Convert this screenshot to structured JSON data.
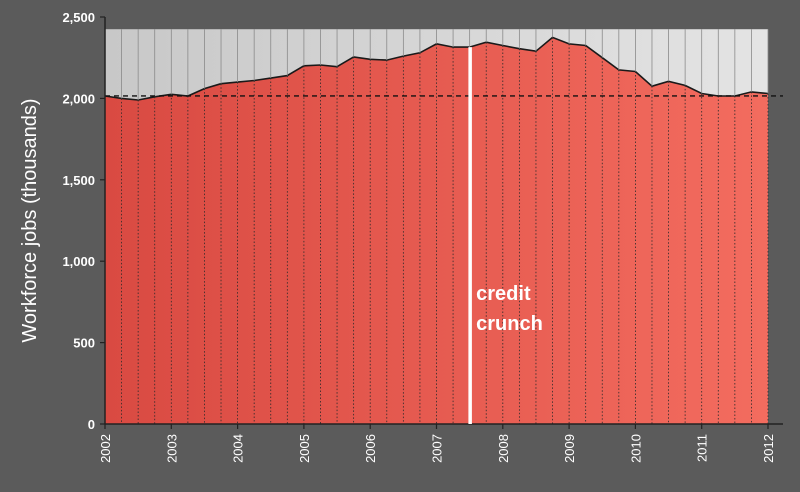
{
  "chart_data": {
    "type": "area",
    "title": "",
    "xlabel": "",
    "ylabel": "Workforce jobs (thousands)",
    "ylim": [
      0,
      2500
    ],
    "y_ticks": [
      0,
      500,
      1000,
      1500,
      2000,
      2500
    ],
    "y_tick_labels": [
      "0",
      "500",
      "1,000",
      "1,500",
      "2,000",
      "2,500"
    ],
    "x_ticks": [
      "2002",
      "2003",
      "2004",
      "2005",
      "2006",
      "2007",
      "2008",
      "2009",
      "2010",
      "2011",
      "2012"
    ],
    "quarters": [
      "2002 Q2",
      "2002 Q3",
      "2002 Q4",
      "2003 Q1",
      "2003 Q2",
      "2003 Q3",
      "2003 Q4",
      "2004 Q1",
      "2004 Q2",
      "2004 Q3",
      "2004 Q4",
      "2005 Q1",
      "2005 Q2",
      "2005 Q3",
      "2005 Q4",
      "2006 Q1",
      "2006 Q2",
      "2006 Q3",
      "2006 Q4",
      "2007 Q1",
      "2007 Q2",
      "2007 Q3",
      "2007 Q4",
      "2008 Q1",
      "2008 Q2",
      "2008 Q3",
      "2008 Q4",
      "2009 Q1",
      "2009 Q2",
      "2009 Q3",
      "2009 Q4",
      "2010 Q1",
      "2010 Q2",
      "2010 Q3",
      "2010 Q4",
      "2011 Q1",
      "2011 Q2",
      "2011 Q3",
      "2011 Q4",
      "2012 Q1",
      "2012 Q2"
    ],
    "values": [
      2015,
      2000,
      1990,
      2010,
      2025,
      2015,
      2060,
      2090,
      2100,
      2110,
      2125,
      2140,
      2200,
      2205,
      2195,
      2255,
      2240,
      2235,
      2260,
      2280,
      2335,
      2315,
      2315,
      2345,
      2325,
      2305,
      2290,
      2375,
      2335,
      2325,
      2250,
      2175,
      2165,
      2075,
      2105,
      2080,
      2030,
      2015,
      2015,
      2040,
      2030
    ],
    "reference_line": {
      "value": 2015,
      "style": "dashed"
    },
    "grid": false,
    "legend": "none",
    "annotation": {
      "label_line1": "credit",
      "label_line2": "crunch",
      "at": "2007 Q4"
    },
    "colors": {
      "background": "#5b5b5b",
      "area_fill": "#e05a50",
      "area_fill_light": "#f06a5d",
      "shade_above": "#d6d6d6",
      "gridline": "#111111",
      "annotation": "#ffffff"
    }
  }
}
